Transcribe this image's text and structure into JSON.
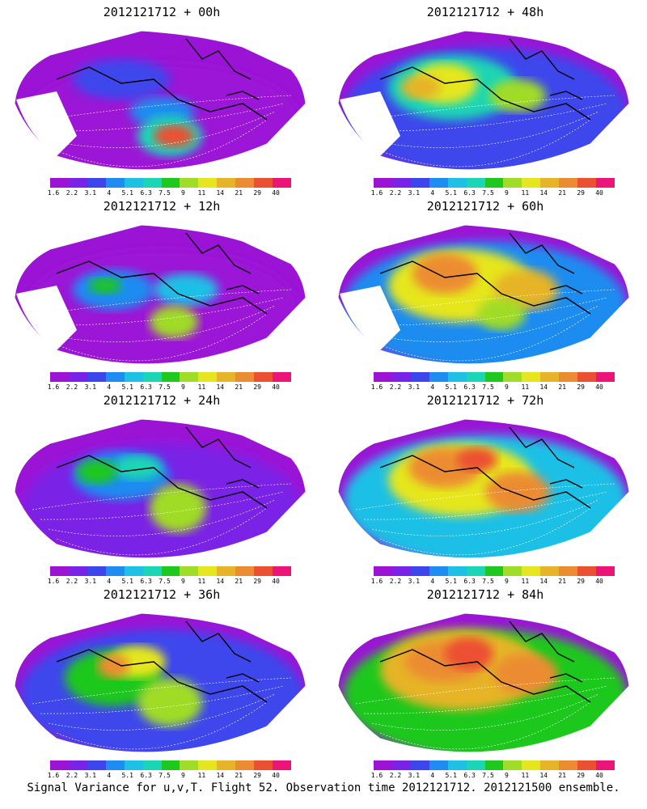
{
  "panels": [
    {
      "title": "2012121712 + 00h",
      "scheme": "00"
    },
    {
      "title": "2012121712 + 48h",
      "scheme": "48"
    },
    {
      "title": "2012121712 + 12h",
      "scheme": "12"
    },
    {
      "title": "2012121712 + 60h",
      "scheme": "60"
    },
    {
      "title": "2012121712 + 24h",
      "scheme": "24"
    },
    {
      "title": "2012121712 + 72h",
      "scheme": "72"
    },
    {
      "title": "2012121712 + 36h",
      "scheme": "36"
    },
    {
      "title": "2012121712 + 84h",
      "scheme": "84"
    }
  ],
  "colorbar": {
    "ticks": [
      "1.6",
      "2.2",
      "3.1",
      "4",
      "5.1",
      "6.3",
      "7.5",
      "9",
      "11",
      "14",
      "21",
      "29",
      "40"
    ],
    "colors": [
      "#9b14d6",
      "#7a22e6",
      "#3c46ec",
      "#1e8cf0",
      "#1ec0e6",
      "#1ad6b4",
      "#1ec81e",
      "#a0dc28",
      "#e6e61e",
      "#e6b428",
      "#ec8c32",
      "#ec5032",
      "#ec1478"
    ]
  },
  "footer": "Signal Variance for u,v,T. Flight 52. Observation time 2012121712. 2012121500 ensemble."
}
